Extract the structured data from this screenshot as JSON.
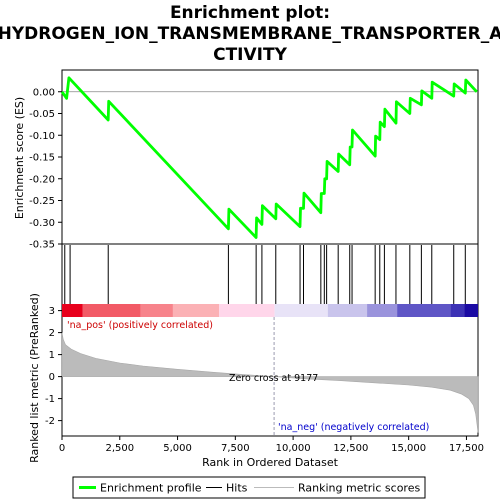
{
  "chart_data": {
    "type": "line",
    "title_lines": [
      "Enrichment plot:",
      "HYDROGEN_ION_TRANSMEMBRANE_TRANSPORTER_A",
      "CTIVITY"
    ],
    "top_panel": {
      "ylabel": "Enrichment score (ES)",
      "ylim": [
        -0.35,
        0.05
      ],
      "yticks": [
        0.0,
        -0.05,
        -0.1,
        -0.15,
        -0.2,
        -0.25,
        -0.3,
        -0.35
      ],
      "ytick_labels": [
        "0.00",
        "-0.05",
        "-0.10",
        "-0.15",
        "-0.20",
        "-0.25",
        "-0.30",
        "-0.35"
      ],
      "series_name": "Enrichment profile",
      "color": "#00ff00",
      "points": [
        [
          0,
          0.0
        ],
        [
          200,
          -0.015
        ],
        [
          300,
          0.032
        ],
        [
          2000,
          -0.065
        ],
        [
          2020,
          -0.022
        ],
        [
          7200,
          -0.315
        ],
        [
          7220,
          -0.27
        ],
        [
          8400,
          -0.335
        ],
        [
          8420,
          -0.29
        ],
        [
          8650,
          -0.305
        ],
        [
          8670,
          -0.262
        ],
        [
          9250,
          -0.292
        ],
        [
          9270,
          -0.258
        ],
        [
          10300,
          -0.31
        ],
        [
          10320,
          -0.268
        ],
        [
          10450,
          -0.268
        ],
        [
          10470,
          -0.233
        ],
        [
          11200,
          -0.278
        ],
        [
          11220,
          -0.234
        ],
        [
          11350,
          -0.234
        ],
        [
          11370,
          -0.2
        ],
        [
          11450,
          -0.2
        ],
        [
          11470,
          -0.16
        ],
        [
          11950,
          -0.183
        ],
        [
          11970,
          -0.143
        ],
        [
          12450,
          -0.168
        ],
        [
          12470,
          -0.127
        ],
        [
          12550,
          -0.127
        ],
        [
          12570,
          -0.088
        ],
        [
          13550,
          -0.148
        ],
        [
          13570,
          -0.102
        ],
        [
          13750,
          -0.11
        ],
        [
          13770,
          -0.07
        ],
        [
          13950,
          -0.08
        ],
        [
          13970,
          -0.04
        ],
        [
          14450,
          -0.072
        ],
        [
          14470,
          -0.023
        ],
        [
          15050,
          -0.05
        ],
        [
          15070,
          -0.015
        ],
        [
          15550,
          -0.03
        ],
        [
          15570,
          0.002
        ],
        [
          16000,
          -0.015
        ],
        [
          16020,
          0.022
        ],
        [
          16950,
          -0.01
        ],
        [
          16970,
          0.018
        ],
        [
          17450,
          -0.003
        ],
        [
          17470,
          0.027
        ],
        [
          17950,
          0.0
        ]
      ]
    },
    "hits": [
      120,
      350,
      2000,
      7200,
      8400,
      8650,
      9250,
      10300,
      10450,
      11200,
      11350,
      11450,
      11950,
      12450,
      12550,
      13550,
      13750,
      13950,
      14450,
      15050,
      15550,
      16000,
      16950,
      17450
    ],
    "bottom_panel": {
      "ylabel": "Ranked list metric (PreRanked)",
      "ylim": [
        -2.7,
        3.3
      ],
      "yticks": [
        3,
        2,
        1,
        0,
        -1,
        -2
      ],
      "ytick_labels": [
        "3",
        "2",
        "1",
        "0",
        "-1",
        "-2"
      ],
      "xlabel": "Rank in Ordered Dataset",
      "xlim": [
        0,
        18000
      ],
      "xticks": [
        0,
        2500,
        5000,
        7500,
        10000,
        12500,
        15000,
        17500
      ],
      "xtick_labels": [
        "0",
        "2,500",
        "5,000",
        "7,500",
        "10,000",
        "12,500",
        "15,000",
        "17,500"
      ],
      "metric_profile": [
        [
          0,
          2.0
        ],
        [
          50,
          1.7
        ],
        [
          150,
          1.45
        ],
        [
          400,
          1.25
        ],
        [
          800,
          1.05
        ],
        [
          1500,
          0.82
        ],
        [
          2500,
          0.62
        ],
        [
          3500,
          0.48
        ],
        [
          5000,
          0.33
        ],
        [
          6500,
          0.2
        ],
        [
          8000,
          0.08
        ],
        [
          9177,
          0.0
        ],
        [
          10500,
          -0.1
        ],
        [
          12000,
          -0.18
        ],
        [
          13500,
          -0.28
        ],
        [
          15000,
          -0.38
        ],
        [
          16000,
          -0.48
        ],
        [
          16800,
          -0.62
        ],
        [
          17300,
          -0.8
        ],
        [
          17600,
          -1.0
        ],
        [
          17800,
          -1.3
        ],
        [
          17900,
          -1.7
        ],
        [
          17960,
          -2.2
        ],
        [
          18000,
          -2.55
        ]
      ],
      "zero_cross": 9177,
      "zero_cross_label": "Zero cross at 9177",
      "pos_label": "'na_pos' (positively correlated)",
      "neg_label": "'na_neg' (negatively correlated)"
    },
    "color_bar": [
      {
        "from": 0,
        "to": 900,
        "color": "#e8001c"
      },
      {
        "from": 900,
        "to": 3400,
        "color": "#f25a66"
      },
      {
        "from": 3400,
        "to": 4800,
        "color": "#f7838b"
      },
      {
        "from": 4800,
        "to": 6800,
        "color": "#fbb1b5"
      },
      {
        "from": 6800,
        "to": 9200,
        "color": "#ffd6ea"
      },
      {
        "from": 9200,
        "to": 11500,
        "color": "#e8e3f7"
      },
      {
        "from": 11500,
        "to": 13200,
        "color": "#c9c4ec"
      },
      {
        "from": 13200,
        "to": 14500,
        "color": "#9a93dc"
      },
      {
        "from": 14500,
        "to": 16800,
        "color": "#5f56c6"
      },
      {
        "from": 16800,
        "to": 17400,
        "color": "#3c32b5"
      },
      {
        "from": 17400,
        "to": 18000,
        "color": "#1a0aa3"
      }
    ],
    "legend": [
      {
        "label": "Enrichment profile",
        "color": "#00ff00",
        "kind": "thick-line"
      },
      {
        "label": "Hits",
        "color": "#000000",
        "kind": "line"
      },
      {
        "label": "Ranking metric scores",
        "color": "#bbbbbb",
        "kind": "line"
      }
    ]
  }
}
